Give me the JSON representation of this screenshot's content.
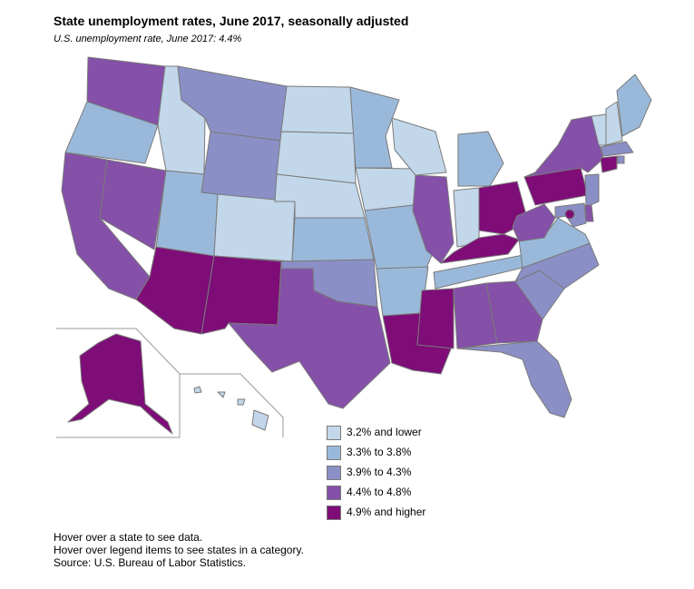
{
  "title": "State unemployment rates, June 2017, seasonally adjusted",
  "subtitle": "U.S. unemployment rate, June 2017: 4.4%",
  "legend": [
    {
      "label": "3.2% and lower",
      "color": "#c2d7ea"
    },
    {
      "label": "3.3% to 3.8%",
      "color": "#9ab9da"
    },
    {
      "label": "3.9% to 4.3%",
      "color": "#8a8fc6"
    },
    {
      "label": "4.4% to 4.8%",
      "color": "#8450a8"
    },
    {
      "label": "4.9% and higher",
      "color": "#7e0d78"
    }
  ],
  "states": {
    "WA": 4,
    "OR": 2,
    "CA": 4,
    "NV": 4,
    "ID": 1,
    "MT": 3,
    "WY": 3,
    "UT": 2,
    "CO": 1,
    "AZ": 5,
    "NM": 5,
    "ND": 1,
    "SD": 1,
    "NE": 1,
    "KS": 2,
    "OK": 3,
    "TX": 4,
    "MN": 2,
    "IA": 1,
    "MO": 2,
    "AR": 2,
    "LA": 5,
    "WI": 1,
    "IL": 4,
    "MI": 2,
    "IN": 1,
    "OH": 5,
    "KY": 5,
    "TN": 2,
    "MS": 5,
    "AL": 4,
    "GA": 4,
    "FL": 3,
    "SC": 3,
    "NC": 3,
    "VA": 2,
    "WV": 4,
    "PA": 5,
    "NY": 4,
    "VT": 1,
    "NH": 1,
    "ME": 2,
    "MA": 3,
    "CT": 5,
    "RI": 3,
    "NJ": 3,
    "DE": 4,
    "MD": 3,
    "DC": 5,
    "AK": 5,
    "HI": 1
  },
  "footnotes": [
    "Hover over a state to see data.",
    "Hover over legend items to see states in a category.",
    "Source: U.S. Bureau of Labor Statistics."
  ]
}
